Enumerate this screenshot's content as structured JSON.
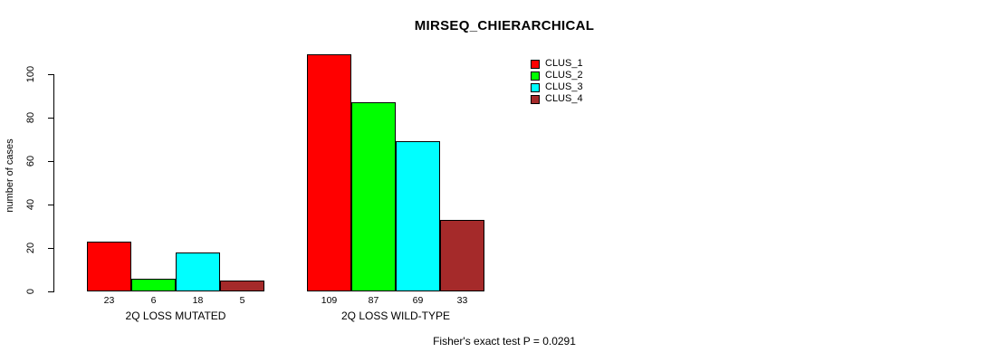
{
  "chart_data": {
    "type": "bar",
    "title": "MIRSEQ_CHIERARCHICAL",
    "ylabel": "number of cases",
    "xlabel": "",
    "categories": [
      "2Q LOSS MUTATED",
      "2Q LOSS WILD-TYPE"
    ],
    "series": [
      {
        "name": "CLUS_1",
        "color": "#FF0000",
        "values": [
          23,
          109
        ]
      },
      {
        "name": "CLUS_2",
        "color": "#00FF00",
        "values": [
          6,
          87
        ]
      },
      {
        "name": "CLUS_3",
        "color": "#00FFFF",
        "values": [
          18,
          69
        ]
      },
      {
        "name": "CLUS_4",
        "color": "#A52A2A",
        "values": [
          5,
          33
        ]
      }
    ],
    "bar_value_labels": [
      [
        "23",
        "6",
        "18",
        "5"
      ],
      [
        "109",
        "87",
        "69",
        "33"
      ]
    ],
    "yticks": [
      0,
      20,
      40,
      60,
      80,
      100
    ],
    "ylim": [
      0,
      100
    ],
    "grid": false,
    "legend_position": "top-right",
    "legend_entries": [
      "CLUS_1",
      "CLUS_2",
      "CLUS_3",
      "CLUS_4"
    ],
    "annotation": "Fisher's exact test P = 0.0291"
  }
}
